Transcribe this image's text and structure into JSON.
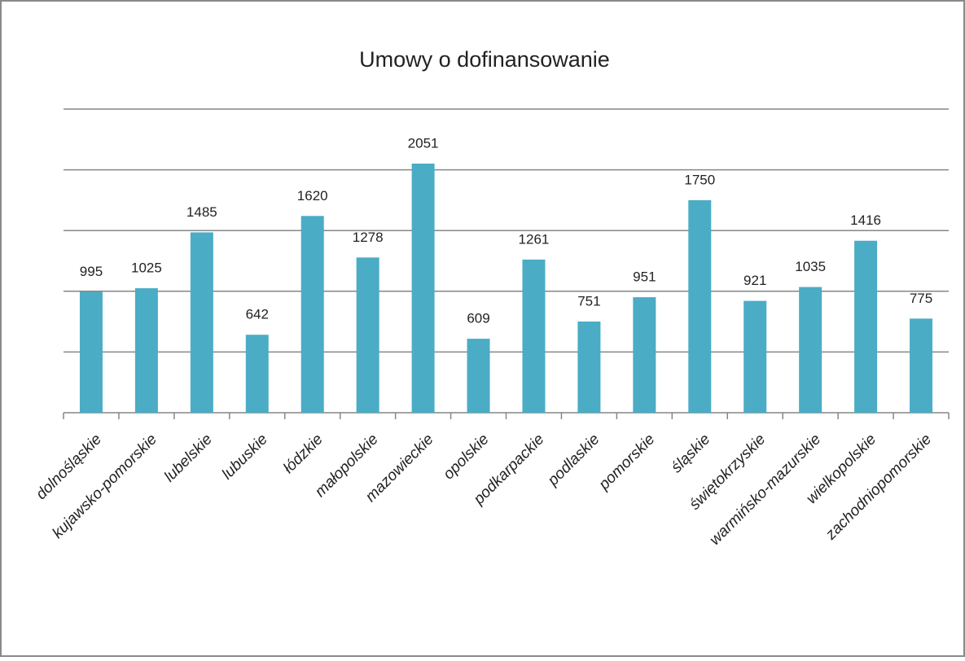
{
  "chart_data": {
    "type": "bar",
    "title": "Umowy o dofinansowanie",
    "categories": [
      "dolnośląskie",
      "kujawsko-pomorskie",
      "lubelskie",
      "lubuskie",
      "łódzkie",
      "małopolskie",
      "mazowieckie",
      "opolskie",
      "podkarpackie",
      "podlaskie",
      "pomorskie",
      "śląskie",
      "świętokrzyskie",
      "warmińsko-mazurskie",
      "wielkopolskie",
      "zachodniopomorskie"
    ],
    "values": [
      995,
      1025,
      1485,
      642,
      1620,
      1278,
      2051,
      609,
      1261,
      751,
      951,
      1750,
      921,
      1035,
      1416,
      775
    ],
    "color": "#4bacc6",
    "ylim": [
      0,
      2500
    ],
    "yticks": [
      0,
      500,
      1000,
      1500,
      2000,
      2500
    ],
    "grid": true
  }
}
